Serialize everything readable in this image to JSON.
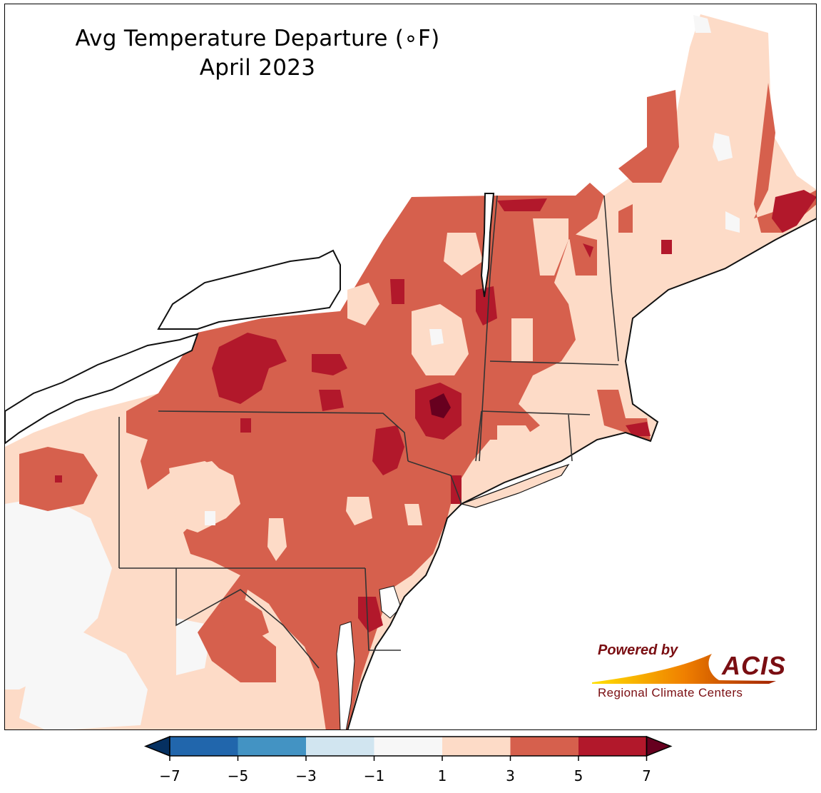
{
  "map": {
    "title_line1": "Avg Temperature Departure (∘F)",
    "title_line2": "April 2023"
  },
  "legend": {
    "tick_labels": [
      "−7",
      "−5",
      "−3",
      "−1",
      "1",
      "3",
      "5",
      "7"
    ],
    "bins": [
      {
        "range": "-7 to -5",
        "color": "#2166ac"
      },
      {
        "range": "-5 to -3",
        "color": "#4393c3"
      },
      {
        "range": "-3 to -1",
        "color": "#d1e5f0"
      },
      {
        "range": "-1 to 1",
        "color": "#f7f7f7"
      },
      {
        "range": "1 to 3",
        "color": "#fddbc7"
      },
      {
        "range": "3 to 5",
        "color": "#d6604d"
      },
      {
        "range": "5 to 7",
        "color": "#b2182b"
      }
    ],
    "under_color": "#053061",
    "over_color": "#67001f"
  },
  "logo": {
    "powered_by": "Powered by",
    "brand": "ACIS",
    "tagline": "Regional Climate Centers"
  }
}
